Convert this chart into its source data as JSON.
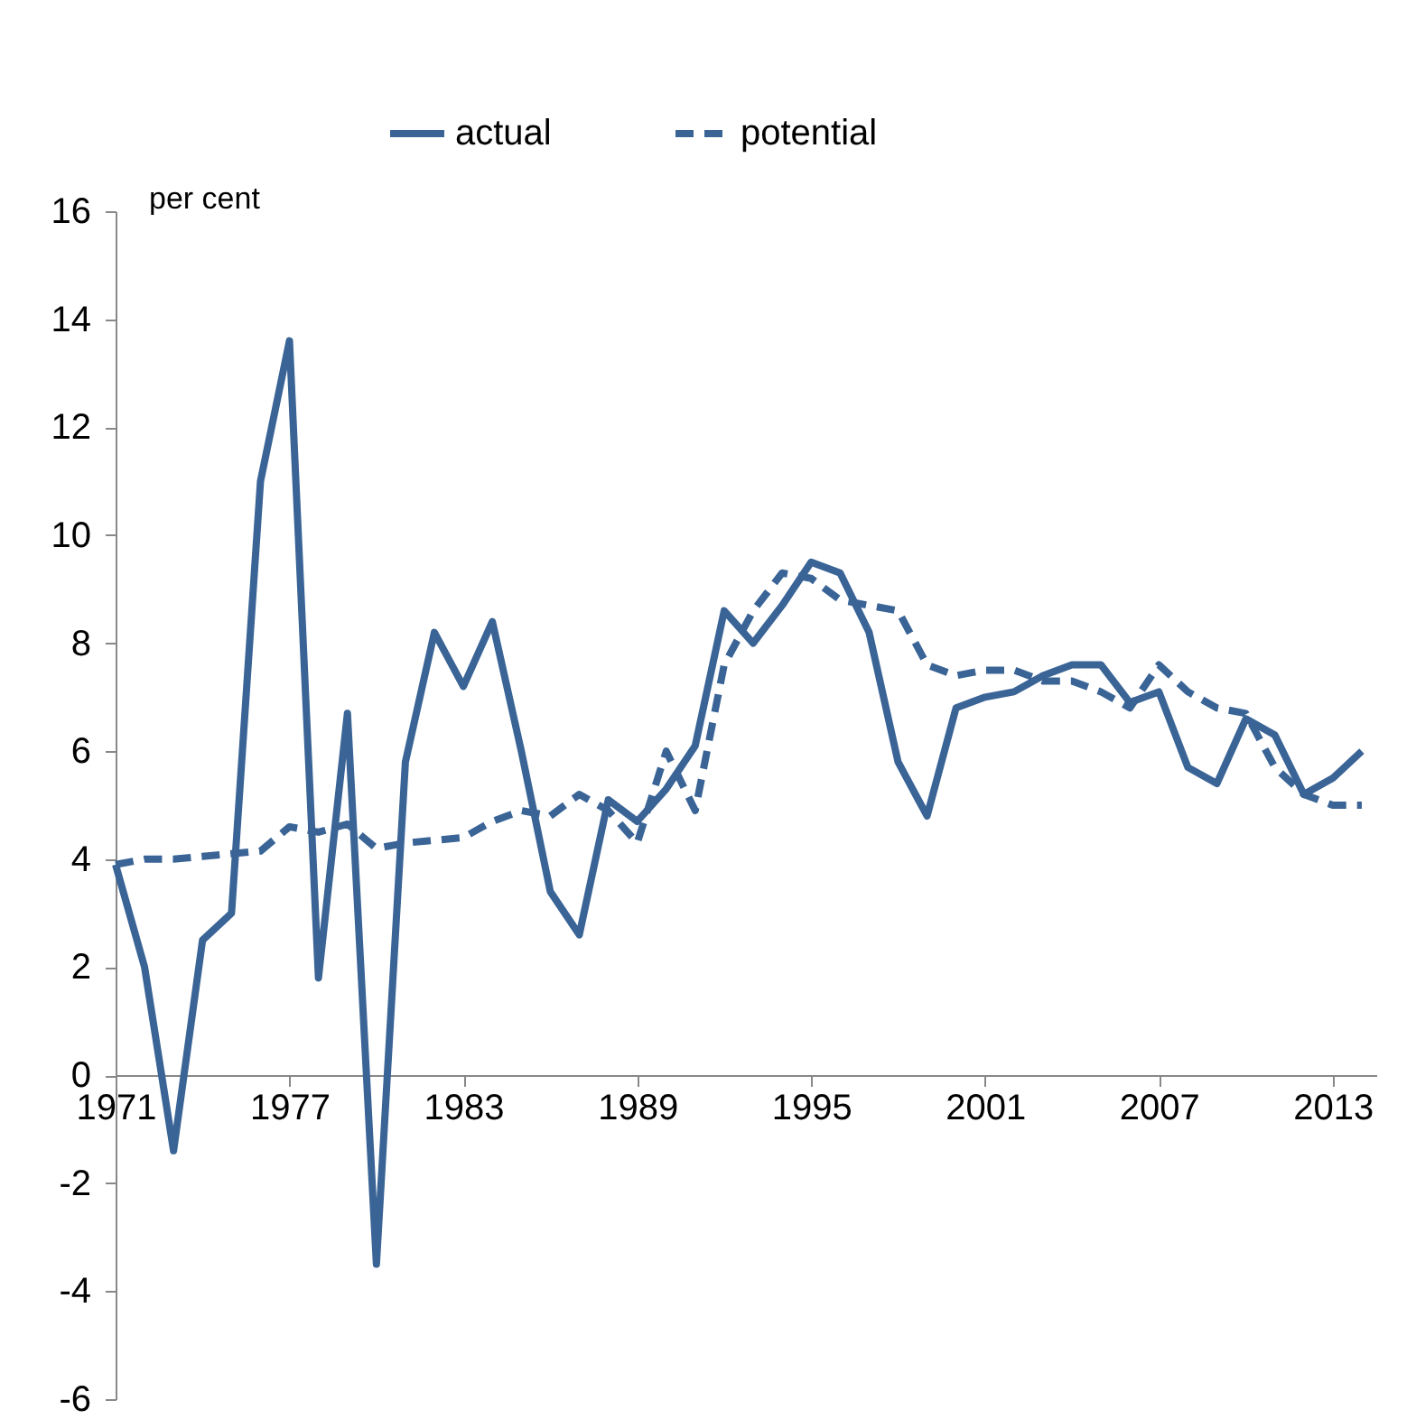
{
  "chart_data": {
    "type": "line",
    "ylabel": "per cent",
    "x": [
      1971,
      1972,
      1973,
      1974,
      1975,
      1976,
      1977,
      1978,
      1979,
      1980,
      1981,
      1982,
      1983,
      1984,
      1985,
      1986,
      1987,
      1988,
      1989,
      1990,
      1991,
      1992,
      1993,
      1994,
      1995,
      1996,
      1997,
      1998,
      1999,
      2000,
      2001,
      2002,
      2003,
      2004,
      2005,
      2006,
      2007,
      2008,
      2009,
      2010,
      2011,
      2012,
      2013,
      2014
    ],
    "series": [
      {
        "name": "actual",
        "color": "#3a6496",
        "line_style": "solid",
        "values": [
          3.9,
          2.0,
          -1.4,
          2.5,
          3.0,
          11.0,
          13.6,
          1.8,
          6.7,
          -3.5,
          5.8,
          8.2,
          7.2,
          8.4,
          6.0,
          3.4,
          2.6,
          5.1,
          4.7,
          5.3,
          6.1,
          8.6,
          8.0,
          8.7,
          9.5,
          9.3,
          8.2,
          5.8,
          4.8,
          6.8,
          7.0,
          7.1,
          7.4,
          7.6,
          7.6,
          6.9,
          7.1,
          5.7,
          5.4,
          6.6,
          6.3,
          5.2,
          5.5,
          6.0
        ]
      },
      {
        "name": "potential",
        "color": "#3a6496",
        "line_style": "dashed",
        "values": [
          3.9,
          4.0,
          4.0,
          4.05,
          4.1,
          4.15,
          4.6,
          4.5,
          4.65,
          4.2,
          4.3,
          4.35,
          4.4,
          4.7,
          4.9,
          4.8,
          5.2,
          4.9,
          4.3,
          6.0,
          4.9,
          7.6,
          8.6,
          9.3,
          9.2,
          8.8,
          8.7,
          8.6,
          7.6,
          7.4,
          7.5,
          7.5,
          7.3,
          7.3,
          7.1,
          6.8,
          7.6,
          7.1,
          6.8,
          6.7,
          5.7,
          5.2,
          5.0,
          5.0
        ]
      }
    ],
    "xlim": [
      1971,
      2014.5
    ],
    "xticks": [
      1971,
      1977,
      1983,
      1989,
      1995,
      2001,
      2007,
      2013
    ],
    "ylim": [
      -6,
      16
    ],
    "yticks": [
      -6,
      -4,
      -2,
      0,
      2,
      4,
      6,
      8,
      10,
      12,
      14,
      16
    ],
    "grid": false,
    "legend": "top"
  }
}
